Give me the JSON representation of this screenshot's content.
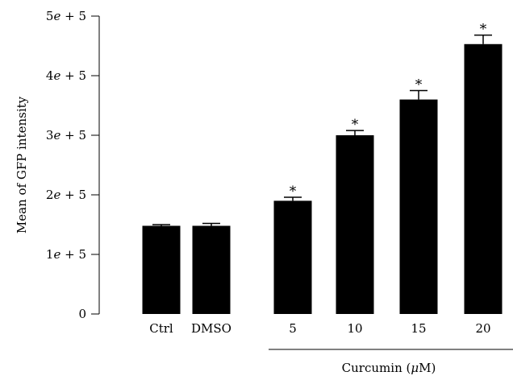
{
  "chart_data": {
    "type": "bar",
    "title": "",
    "ylabel": "Mean of GFP intensity",
    "xlabel": "",
    "group_label": "Curcumin (μM)",
    "categories": [
      "Ctrl",
      "DMSO",
      "5",
      "10",
      "15",
      "20"
    ],
    "values": [
      148000,
      148000,
      190000,
      300000,
      360000,
      453000
    ],
    "errors": [
      2000,
      4000,
      6000,
      8000,
      15000,
      15000
    ],
    "significance": [
      "",
      "",
      "*",
      "*",
      "*",
      "*"
    ],
    "y_ticks": [
      0,
      100000,
      200000,
      300000,
      400000,
      500000
    ],
    "y_tick_labels": [
      "0",
      "1e + 5",
      "2e + 5",
      "3e + 5",
      "4e + 5",
      "5e + 5"
    ],
    "ylim": [
      0,
      500000
    ],
    "grid": false,
    "bar_color": "#000000"
  }
}
